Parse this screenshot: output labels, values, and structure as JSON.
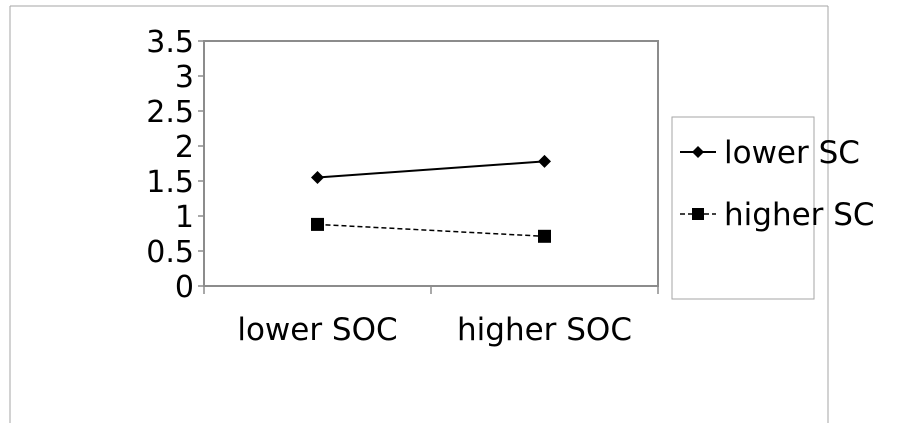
{
  "chart_data": {
    "type": "line",
    "categories": [
      "lower SOC",
      "higher SOC"
    ],
    "series": [
      {
        "name": "lower SC",
        "values": [
          1.55,
          1.78
        ],
        "marker": "diamond",
        "line_style": "solid",
        "color": "#000000"
      },
      {
        "name": "higher SC",
        "values": [
          0.88,
          0.71
        ],
        "marker": "square",
        "line_style": "dashed",
        "color": "#000000"
      }
    ],
    "y_ticks": [
      "0",
      "0.5",
      "1",
      "1.5",
      "2",
      "2.5",
      "3",
      "3.5"
    ],
    "ylim": [
      0,
      3.5
    ],
    "grid": false,
    "legend_position": "right",
    "title": "",
    "xlabel": "",
    "ylabel": ""
  }
}
